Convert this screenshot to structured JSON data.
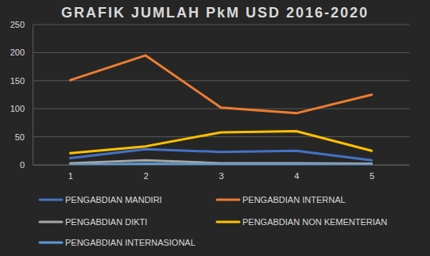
{
  "chart_data": {
    "type": "line",
    "title": "GRAFIK JUMLAH PkM USD 2016-2020",
    "categories": [
      "1",
      "2",
      "3",
      "4",
      "5"
    ],
    "series": [
      {
        "name": "PENGABDIAN MANDIRI",
        "color": "#4472c4",
        "values": [
          12,
          28,
          23,
          25,
          8
        ]
      },
      {
        "name": "PENGABDIAN INTERNAL",
        "color": "#ed7d31",
        "values": [
          151,
          195,
          102,
          92,
          125
        ]
      },
      {
        "name": "PENGABDIAN DIKTI",
        "color": "#a5a5a5",
        "values": [
          3,
          8,
          3,
          3,
          2
        ]
      },
      {
        "name": "PENGABDIAN NON KEMENTERIAN",
        "color": "#ffc000",
        "values": [
          21,
          33,
          58,
          60,
          25
        ]
      },
      {
        "name": "PENGABDIAN INTERNASIONAL",
        "color": "#5b9bd5",
        "values": [
          0,
          2,
          1,
          1,
          0
        ]
      }
    ],
    "ylim": [
      0,
      250
    ],
    "yticks": [
      0,
      50,
      100,
      150,
      200,
      250
    ],
    "grid": true,
    "legend": "bottom"
  }
}
